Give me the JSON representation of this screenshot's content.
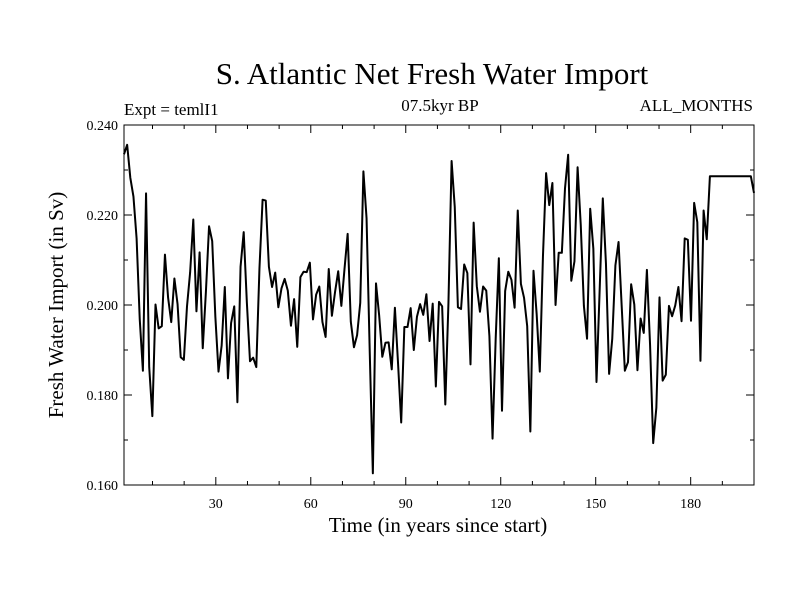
{
  "chart_data": {
    "type": "line",
    "title": "S. Atlantic Net Fresh Water Import",
    "subtitle_left": "Expt = temlI1",
    "subtitle_center": "07.5kyr BP",
    "subtitle_right": "ALL_MONTHS",
    "xlabel": "Time (in years since start)",
    "ylabel": "Fresh Water Import (in Sv)",
    "xlim": [
      1,
      200
    ],
    "ylim": [
      0.16,
      0.24
    ],
    "xticks": [
      30,
      60,
      90,
      120,
      150,
      180
    ],
    "yticks": [
      0.16,
      0.18,
      0.2,
      0.22,
      0.24
    ],
    "ytick_labels": [
      "0.160",
      "0.180",
      "0.200",
      "0.220",
      "0.240"
    ],
    "series": [
      {
        "name": "Fresh Water Import",
        "color": "#000000",
        "values": [
          0.2335,
          0.2356,
          0.2283,
          0.2241,
          0.2148,
          0.1968,
          0.1854,
          0.2248,
          0.1862,
          0.1753,
          0.2001,
          0.1948,
          0.1953,
          0.2112,
          0.2016,
          0.1962,
          0.2059,
          0.2002,
          0.1884,
          0.1878,
          0.1997,
          0.2073,
          0.219,
          0.1986,
          0.2117,
          0.1904,
          0.2029,
          0.2175,
          0.2142,
          0.1974,
          0.1852,
          0.191,
          0.204,
          0.1837,
          0.196,
          0.1997,
          0.1784,
          0.2085,
          0.2162,
          0.2006,
          0.1875,
          0.1883,
          0.1862,
          0.2081,
          0.2234,
          0.2232,
          0.2085,
          0.204,
          0.2072,
          0.1995,
          0.2037,
          0.2058,
          0.2032,
          0.1954,
          0.2013,
          0.1907,
          0.2062,
          0.2074,
          0.2073,
          0.2094,
          0.1968,
          0.2023,
          0.2041,
          0.1962,
          0.1929,
          0.208,
          0.1976,
          0.2029,
          0.2075,
          0.1998,
          0.208,
          0.2158,
          0.1963,
          0.1906,
          0.1933,
          0.2005,
          0.2297,
          0.2193,
          0.1899,
          0.1626,
          0.2048,
          0.1977,
          0.1885,
          0.1916,
          0.1917,
          0.1857,
          0.1994,
          0.187,
          0.1739,
          0.1951,
          0.1951,
          0.1993,
          0.19,
          0.1974,
          0.2002,
          0.1978,
          0.2024,
          0.192,
          0.2003,
          0.1819,
          0.2007,
          0.1997,
          0.1779,
          0.2005,
          0.232,
          0.2218,
          0.1995,
          0.1991,
          0.209,
          0.2071,
          0.1868,
          0.2183,
          0.2042,
          0.1985,
          0.2041,
          0.2032,
          0.1931,
          0.1703,
          0.1926,
          0.2104,
          0.1765,
          0.2031,
          0.2074,
          0.2056,
          0.1994,
          0.221,
          0.2047,
          0.2016,
          0.1953,
          0.1719,
          0.2076,
          0.198,
          0.1852,
          0.2108,
          0.2293,
          0.2222,
          0.2271,
          0.2,
          0.2116,
          0.2116,
          0.2259,
          0.2334,
          0.2054,
          0.2097,
          0.2306,
          0.2178,
          0.1998,
          0.1925,
          0.2214,
          0.2125,
          0.1829,
          0.2033,
          0.2237,
          0.2092,
          0.1847,
          0.1925,
          0.2088,
          0.214,
          0.1997,
          0.1854,
          0.1873,
          0.2046,
          0.2001,
          0.1855,
          0.197,
          0.1938,
          0.2078,
          0.1912,
          0.1693,
          0.1772,
          0.2017,
          0.1832,
          0.1845,
          0.1998,
          0.1975,
          0.1999,
          0.204,
          0.1964,
          0.2148,
          0.2145,
          0.1965,
          0.2227,
          0.2184,
          0.1876,
          0.221,
          0.2146,
          0.2286,
          0.2286,
          0.2286,
          0.2286,
          0.2286,
          0.2286,
          0.2286,
          0.2286,
          0.2286,
          0.2286,
          0.2286,
          0.2286,
          0.2286,
          0.2286,
          0.2249
        ]
      }
    ]
  }
}
